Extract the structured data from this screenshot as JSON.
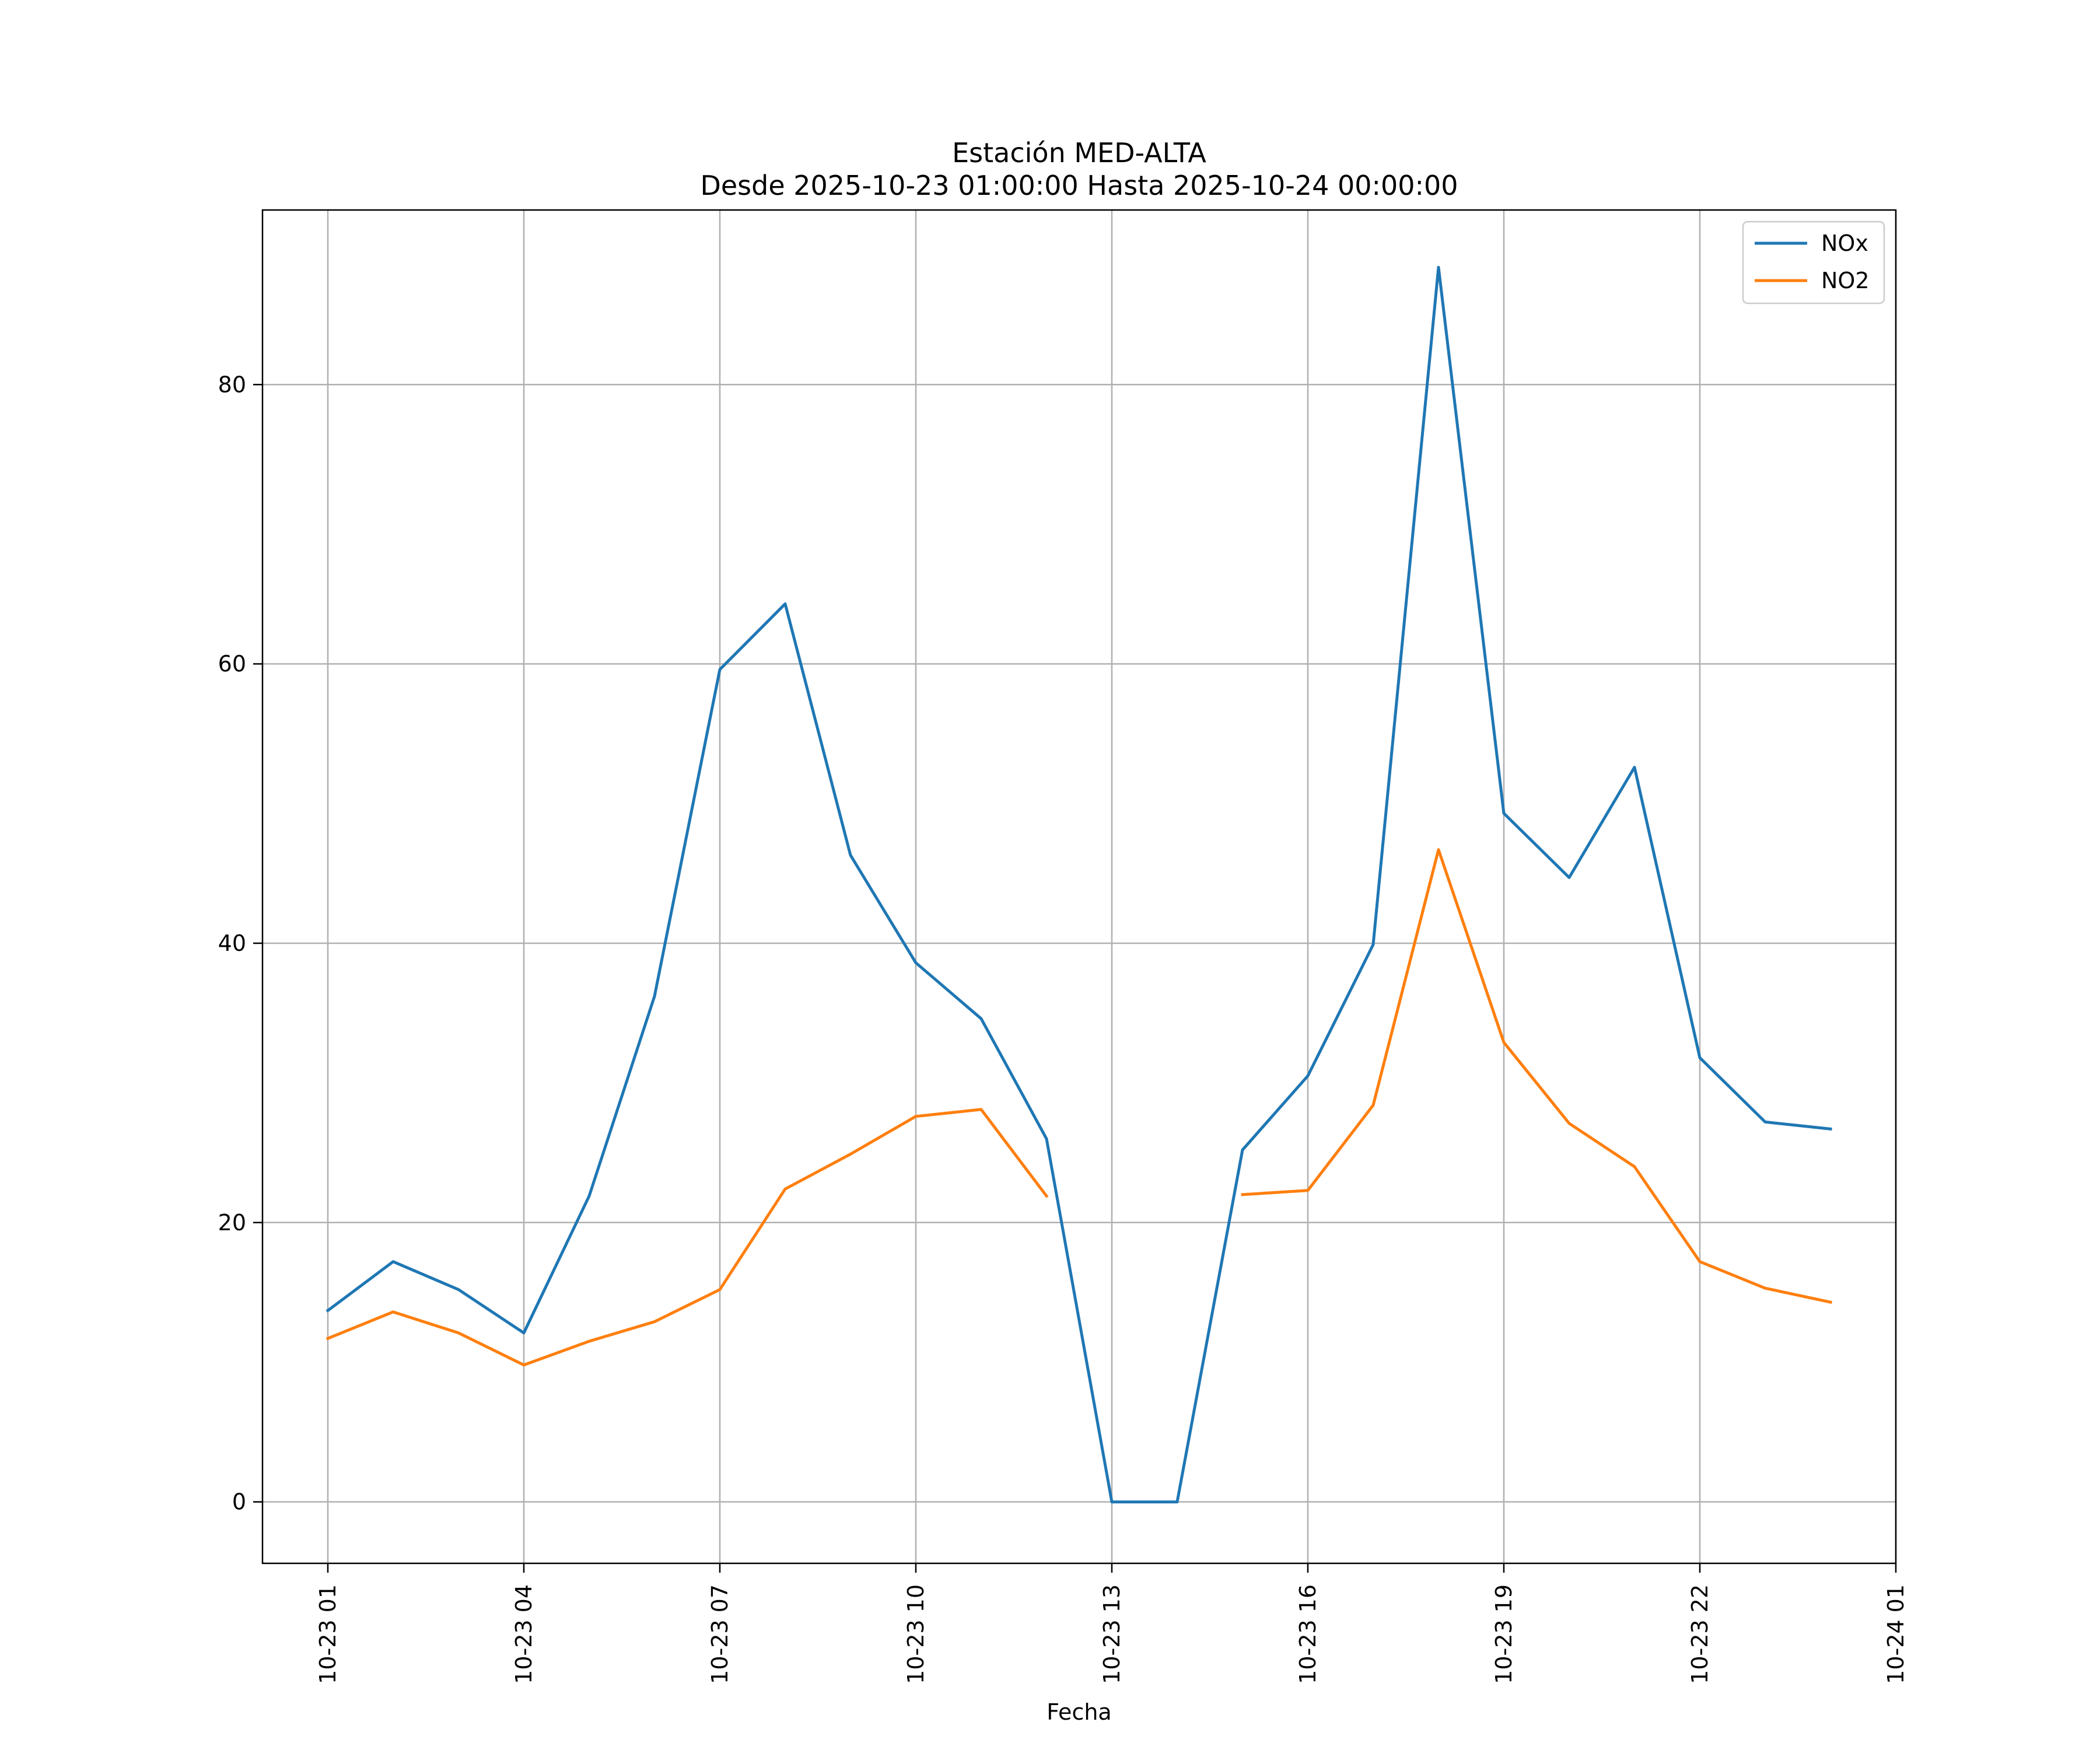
{
  "chart_data": {
    "type": "line",
    "title": "Estación MED-ALTA",
    "subtitle": "Desde 2025-10-23 01:00:00 Hasta 2025-10-24 00:00:00",
    "xlabel": "Fecha",
    "ylabel": "",
    "x": [
      "10-23 01",
      "10-23 02",
      "10-23 03",
      "10-23 04",
      "10-23 05",
      "10-23 06",
      "10-23 07",
      "10-23 08",
      "10-23 09",
      "10-23 10",
      "10-23 11",
      "10-23 12",
      "10-23 13",
      "10-23 14",
      "10-23 15",
      "10-23 16",
      "10-23 17",
      "10-23 18",
      "10-23 19",
      "10-23 20",
      "10-23 21",
      "10-23 22",
      "10-23 23",
      "10-24 00"
    ],
    "x_ticks": [
      "10-23 01",
      "10-23 04",
      "10-23 07",
      "10-23 10",
      "10-23 13",
      "10-23 16",
      "10-23 19",
      "10-23 22",
      "10-24 01"
    ],
    "x_range": [
      "10-23 00",
      "10-24 01"
    ],
    "y_ticks": [
      0,
      20,
      40,
      60,
      80
    ],
    "ylim": [
      -4.4,
      92.5
    ],
    "grid": true,
    "legend": "top-right",
    "series": [
      {
        "name": "NOx",
        "color": "#1f77b4",
        "values": [
          13.7,
          17.2,
          15.2,
          12.1,
          21.9,
          36.2,
          59.6,
          64.3,
          46.3,
          38.6,
          34.6,
          26.0,
          0.0,
          0.0,
          25.2,
          30.5,
          39.9,
          88.4,
          49.3,
          44.7,
          52.6,
          31.8,
          27.2,
          26.7
        ]
      },
      {
        "name": "NO2",
        "color": "#ff7f0e",
        "values": [
          11.7,
          13.6,
          12.1,
          9.8,
          11.5,
          12.9,
          15.2,
          22.4,
          24.9,
          27.6,
          28.1,
          21.9,
          null,
          null,
          22.0,
          22.3,
          28.4,
          46.7,
          32.9,
          27.1,
          24.0,
          17.2,
          15.3,
          14.3
        ]
      }
    ]
  }
}
